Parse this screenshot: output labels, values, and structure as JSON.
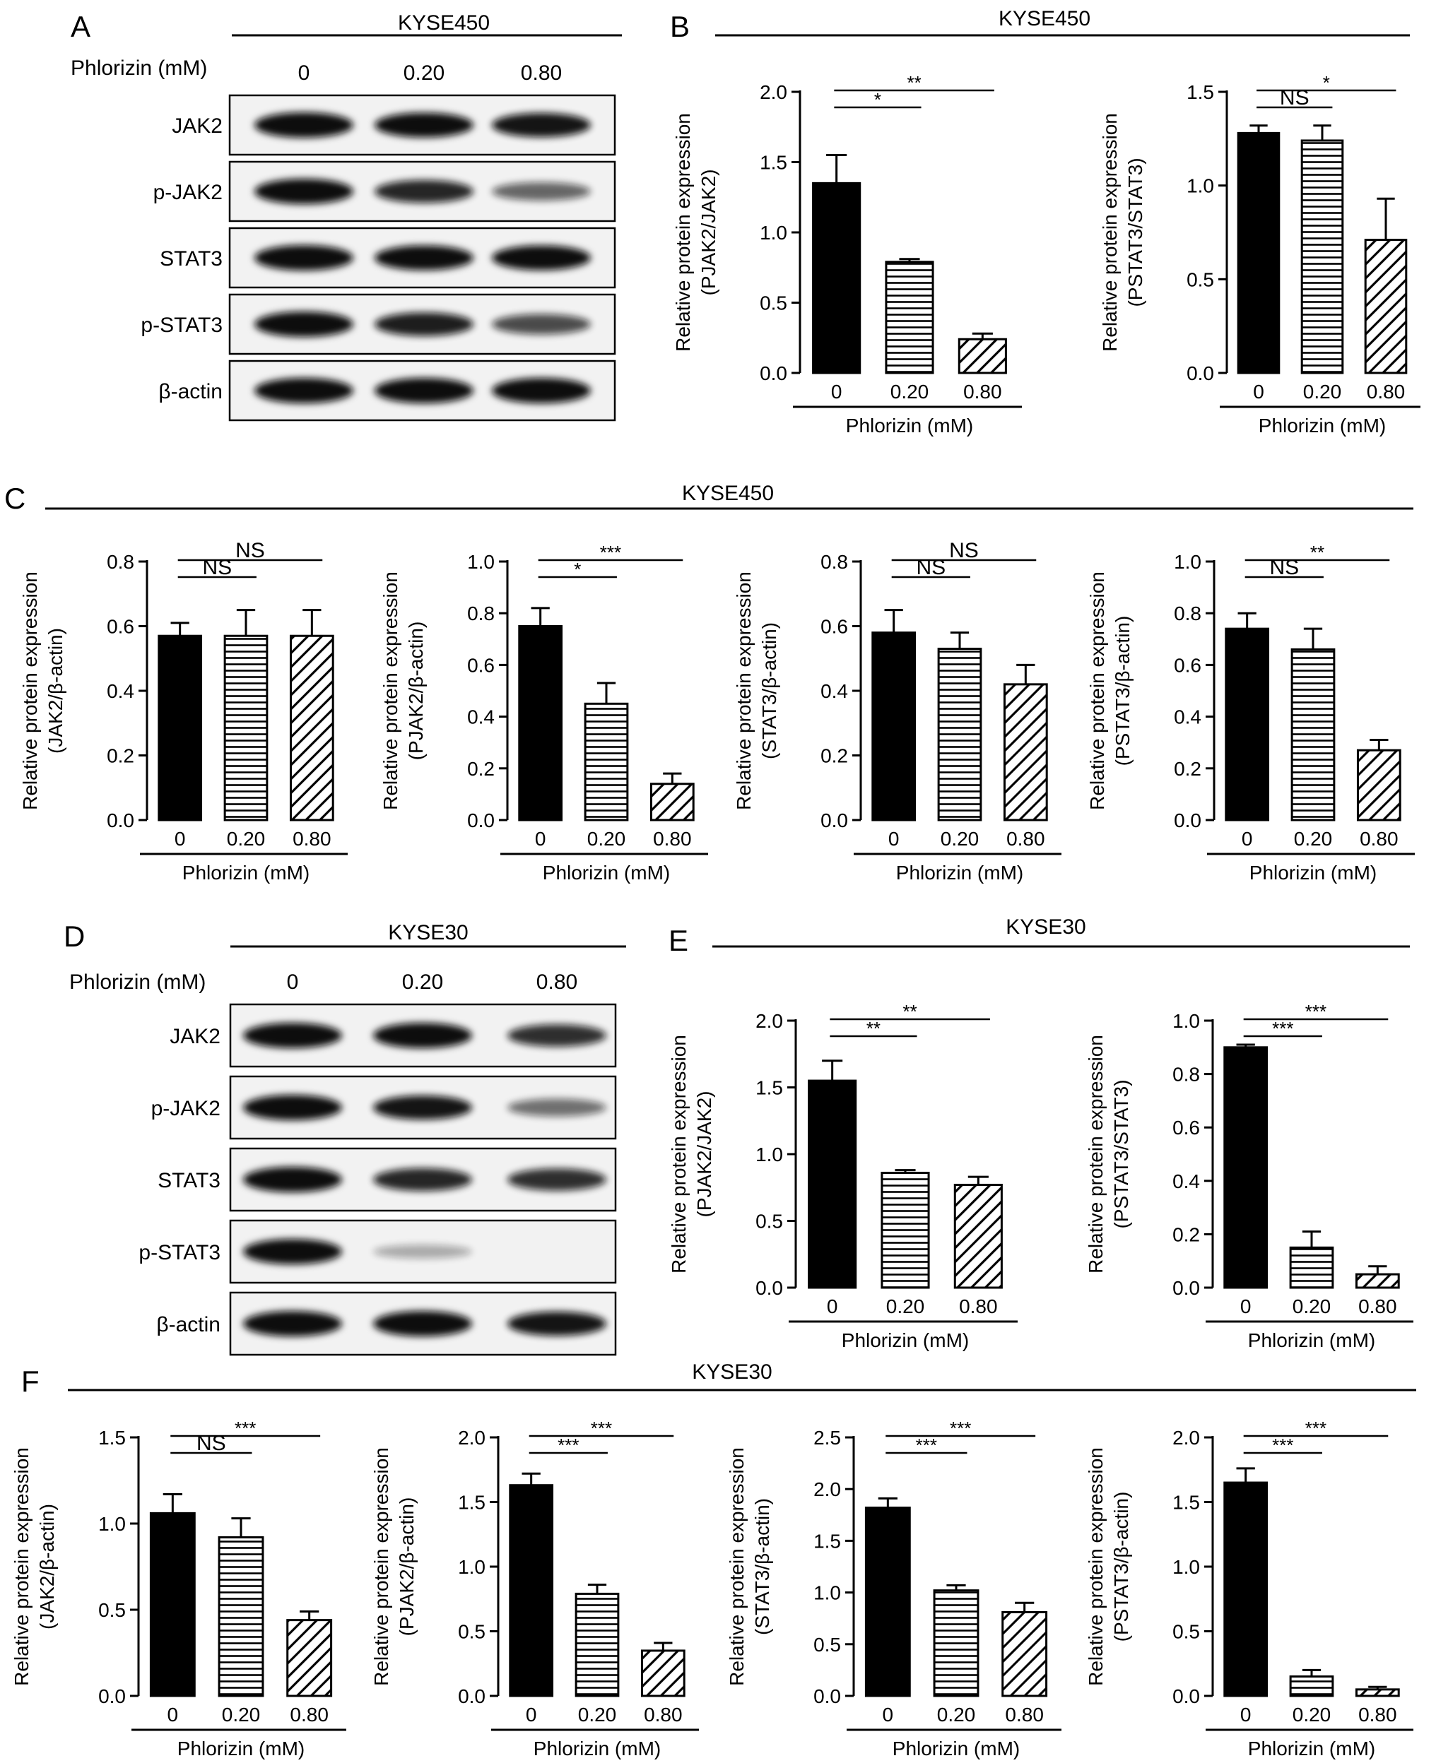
{
  "panels": {
    "A": {
      "letter": "A",
      "cell_line": "KYSE450",
      "treatment_label": "Phlorizin (mM)",
      "doses": [
        "0",
        "0.20",
        "0.80"
      ],
      "blots": [
        {
          "label": "JAK2",
          "intensity": [
            1.0,
            0.95,
            0.9
          ]
        },
        {
          "label": "p-JAK2",
          "intensity": [
            1.0,
            0.8,
            0.45
          ]
        },
        {
          "label": "STAT3",
          "intensity": [
            1.0,
            0.95,
            0.95
          ]
        },
        {
          "label": "p-STAT3",
          "intensity": [
            1.0,
            0.85,
            0.6
          ]
        },
        {
          "label": "β-actin",
          "intensity": [
            1.0,
            1.0,
            1.0
          ]
        }
      ]
    },
    "B": {
      "letter": "B",
      "title": "KYSE450"
    },
    "C": {
      "letter": "C",
      "title": "KYSE450"
    },
    "D": {
      "letter": "D",
      "cell_line": "KYSE30",
      "treatment_label": "Phlorizin (mM)",
      "doses": [
        "0",
        "0.20",
        "0.80"
      ],
      "blots": [
        {
          "label": "JAK2",
          "intensity": [
            1.0,
            1.0,
            0.75
          ]
        },
        {
          "label": "p-JAK2",
          "intensity": [
            1.0,
            0.9,
            0.4
          ]
        },
        {
          "label": "STAT3",
          "intensity": [
            1.0,
            0.8,
            0.75
          ]
        },
        {
          "label": "p-STAT3",
          "intensity": [
            1.0,
            0.08,
            0.0
          ]
        },
        {
          "label": "β-actin",
          "intensity": [
            1.0,
            1.0,
            0.9
          ]
        }
      ]
    },
    "E": {
      "letter": "E",
      "title": "KYSE30"
    },
    "F": {
      "letter": "F",
      "title": "KYSE30"
    }
  },
  "chart_data": [
    {
      "id": "B1",
      "panel": "B",
      "type": "bar",
      "categories": [
        "0",
        "0.20",
        "0.80"
      ],
      "values": [
        1.35,
        0.79,
        0.24
      ],
      "errors": [
        0.2,
        0.02,
        0.04
      ],
      "ylabel": [
        "Relative protein expression",
        "(PJAK2/JAK2)"
      ],
      "xlabel": "Phlorizin (mM)",
      "ylim": [
        0,
        2.0
      ],
      "ticks": [
        "0.0",
        "0.5",
        "1.0",
        "1.5",
        "2.0"
      ],
      "tick_values": [
        0,
        0.5,
        1.0,
        1.5,
        2.0
      ],
      "annotations": [
        {
          "from": 0,
          "to": 1,
          "label": "*"
        },
        {
          "from": 0,
          "to": 2,
          "label": "**"
        }
      ]
    },
    {
      "id": "B2",
      "panel": "B",
      "type": "bar",
      "categories": [
        "0",
        "0.20",
        "0.80"
      ],
      "values": [
        1.28,
        1.24,
        0.71
      ],
      "errors": [
        0.04,
        0.08,
        0.22
      ],
      "ylabel": [
        "Relative protein expression",
        "(PSTAT3/STAT3)"
      ],
      "xlabel": "Phlorizin (mM)",
      "ylim": [
        0,
        1.5
      ],
      "ticks": [
        "0.0",
        "0.5",
        "1.0",
        "1.5"
      ],
      "tick_values": [
        0,
        0.5,
        1.0,
        1.5
      ],
      "annotations": [
        {
          "from": 0,
          "to": 1,
          "label": "NS"
        },
        {
          "from": 0,
          "to": 2,
          "label": "*"
        }
      ]
    },
    {
      "id": "C1",
      "panel": "C",
      "type": "bar",
      "categories": [
        "0",
        "0.20",
        "0.80"
      ],
      "values": [
        0.57,
        0.57,
        0.57
      ],
      "errors": [
        0.04,
        0.08,
        0.08
      ],
      "ylabel": [
        "Relative protein expression",
        "(JAK2/β-actin)"
      ],
      "xlabel": "Phlorizin (mM)",
      "ylim": [
        0,
        0.8
      ],
      "ticks": [
        "0.0",
        "0.2",
        "0.4",
        "0.6",
        "0.8"
      ],
      "tick_values": [
        0,
        0.2,
        0.4,
        0.6,
        0.8
      ],
      "annotations": [
        {
          "from": 0,
          "to": 1,
          "label": "NS"
        },
        {
          "from": 0,
          "to": 2,
          "label": "NS"
        }
      ]
    },
    {
      "id": "C2",
      "panel": "C",
      "type": "bar",
      "categories": [
        "0",
        "0.20",
        "0.80"
      ],
      "values": [
        0.75,
        0.45,
        0.14
      ],
      "errors": [
        0.07,
        0.08,
        0.04
      ],
      "ylabel": [
        "Relative protein expression",
        "(PJAK2/β-actin)"
      ],
      "xlabel": "Phlorizin (mM)",
      "ylim": [
        0,
        1.0
      ],
      "ticks": [
        "0.0",
        "0.2",
        "0.4",
        "0.6",
        "0.8",
        "1.0"
      ],
      "tick_values": [
        0,
        0.2,
        0.4,
        0.6,
        0.8,
        1.0
      ],
      "annotations": [
        {
          "from": 0,
          "to": 1,
          "label": "*"
        },
        {
          "from": 0,
          "to": 2,
          "label": "***"
        }
      ]
    },
    {
      "id": "C3",
      "panel": "C",
      "type": "bar",
      "categories": [
        "0",
        "0.20",
        "0.80"
      ],
      "values": [
        0.58,
        0.53,
        0.42
      ],
      "errors": [
        0.07,
        0.05,
        0.06
      ],
      "ylabel": [
        "Relative protein expression",
        "(STAT3/β-actin)"
      ],
      "xlabel": "Phlorizin (mM)",
      "ylim": [
        0,
        0.8
      ],
      "ticks": [
        "0.0",
        "0.2",
        "0.4",
        "0.6",
        "0.8"
      ],
      "tick_values": [
        0,
        0.2,
        0.4,
        0.6,
        0.8
      ],
      "annotations": [
        {
          "from": 0,
          "to": 1,
          "label": "NS"
        },
        {
          "from": 0,
          "to": 2,
          "label": "NS"
        }
      ]
    },
    {
      "id": "C4",
      "panel": "C",
      "type": "bar",
      "categories": [
        "0",
        "0.20",
        "0.80"
      ],
      "values": [
        0.74,
        0.66,
        0.27
      ],
      "errors": [
        0.06,
        0.08,
        0.04
      ],
      "ylabel": [
        "Relative protein expression",
        "(PSTAT3/β-actin)"
      ],
      "xlabel": "Phlorizin (mM)",
      "ylim": [
        0,
        1.0
      ],
      "ticks": [
        "0.0",
        "0.2",
        "0.4",
        "0.6",
        "0.8",
        "1.0"
      ],
      "tick_values": [
        0,
        0.2,
        0.4,
        0.6,
        0.8,
        1.0
      ],
      "annotations": [
        {
          "from": 0,
          "to": 1,
          "label": "NS"
        },
        {
          "from": 0,
          "to": 2,
          "label": "**"
        }
      ]
    },
    {
      "id": "E1",
      "panel": "E",
      "type": "bar",
      "categories": [
        "0",
        "0.20",
        "0.80"
      ],
      "values": [
        1.55,
        0.86,
        0.77
      ],
      "errors": [
        0.15,
        0.02,
        0.06
      ],
      "ylabel": [
        "Relative protein expression",
        "(PJAK2/JAK2)"
      ],
      "xlabel": "Phlorizin (mM)",
      "ylim": [
        0,
        2.0
      ],
      "ticks": [
        "0.0",
        "0.5",
        "1.0",
        "1.5",
        "2.0"
      ],
      "tick_values": [
        0,
        0.5,
        1.0,
        1.5,
        2.0
      ],
      "annotations": [
        {
          "from": 0,
          "to": 1,
          "label": "**"
        },
        {
          "from": 0,
          "to": 2,
          "label": "**"
        }
      ]
    },
    {
      "id": "E2",
      "panel": "E",
      "type": "bar",
      "categories": [
        "0",
        "0.20",
        "0.80"
      ],
      "values": [
        0.9,
        0.15,
        0.05
      ],
      "errors": [
        0.01,
        0.06,
        0.03
      ],
      "ylabel": [
        "Relative protein expression",
        "(PSTAT3/STAT3)"
      ],
      "xlabel": "Phlorizin (mM)",
      "ylim": [
        0,
        1.0
      ],
      "ticks": [
        "0.0",
        "0.2",
        "0.4",
        "0.6",
        "0.8",
        "1.0"
      ],
      "tick_values": [
        0,
        0.2,
        0.4,
        0.6,
        0.8,
        1.0
      ],
      "annotations": [
        {
          "from": 0,
          "to": 1,
          "label": "***"
        },
        {
          "from": 0,
          "to": 2,
          "label": "***"
        }
      ]
    },
    {
      "id": "F1",
      "panel": "F",
      "type": "bar",
      "categories": [
        "0",
        "0.20",
        "0.80"
      ],
      "values": [
        1.06,
        0.92,
        0.44
      ],
      "errors": [
        0.11,
        0.11,
        0.05
      ],
      "ylabel": [
        "Relative protein expression",
        "(JAK2/β-actin)"
      ],
      "xlabel": "Phlorizin (mM)",
      "ylim": [
        0,
        1.5
      ],
      "ticks": [
        "0.0",
        "0.5",
        "1.0",
        "1.5"
      ],
      "tick_values": [
        0,
        0.5,
        1.0,
        1.5
      ],
      "annotations": [
        {
          "from": 0,
          "to": 1,
          "label": "NS"
        },
        {
          "from": 0,
          "to": 2,
          "label": "***"
        }
      ]
    },
    {
      "id": "F2",
      "panel": "F",
      "type": "bar",
      "categories": [
        "0",
        "0.20",
        "0.80"
      ],
      "values": [
        1.63,
        0.79,
        0.35
      ],
      "errors": [
        0.09,
        0.07,
        0.06
      ],
      "ylabel": [
        "Relative protein expression",
        "(PJAK2/β-actin)"
      ],
      "xlabel": "Phlorizin (mM)",
      "ylim": [
        0,
        2.0
      ],
      "ticks": [
        "0.0",
        "0.5",
        "1.0",
        "1.5",
        "2.0"
      ],
      "tick_values": [
        0,
        0.5,
        1.0,
        1.5,
        2.0
      ],
      "annotations": [
        {
          "from": 0,
          "to": 1,
          "label": "***"
        },
        {
          "from": 0,
          "to": 2,
          "label": "***"
        }
      ]
    },
    {
      "id": "F3",
      "panel": "F",
      "type": "bar",
      "categories": [
        "0",
        "0.20",
        "0.80"
      ],
      "values": [
        1.82,
        1.02,
        0.81
      ],
      "errors": [
        0.09,
        0.05,
        0.09
      ],
      "ylabel": [
        "Relative protein expression",
        "(STAT3/β-actin)"
      ],
      "xlabel": "Phlorizin (mM)",
      "ylim": [
        0,
        2.5
      ],
      "ticks": [
        "0.0",
        "0.5",
        "1.0",
        "1.5",
        "2.0",
        "2.5"
      ],
      "tick_values": [
        0,
        0.5,
        1.0,
        1.5,
        2.0,
        2.5
      ],
      "annotations": [
        {
          "from": 0,
          "to": 1,
          "label": "***"
        },
        {
          "from": 0,
          "to": 2,
          "label": "***"
        }
      ]
    },
    {
      "id": "F4",
      "panel": "F",
      "type": "bar",
      "categories": [
        "0",
        "0.20",
        "0.80"
      ],
      "values": [
        1.65,
        0.15,
        0.05
      ],
      "errors": [
        0.11,
        0.05,
        0.02
      ],
      "ylabel": [
        "Relative protein expression",
        "(PSTAT3/β-actin)"
      ],
      "xlabel": "Phlorizin (mM)",
      "ylim": [
        0,
        2.0
      ],
      "ticks": [
        "0.0",
        "0.5",
        "1.0",
        "1.5",
        "2.0"
      ],
      "tick_values": [
        0,
        0.5,
        1.0,
        1.5,
        2.0
      ],
      "annotations": [
        {
          "from": 0,
          "to": 1,
          "label": "***"
        },
        {
          "from": 0,
          "to": 2,
          "label": "***"
        }
      ]
    }
  ]
}
